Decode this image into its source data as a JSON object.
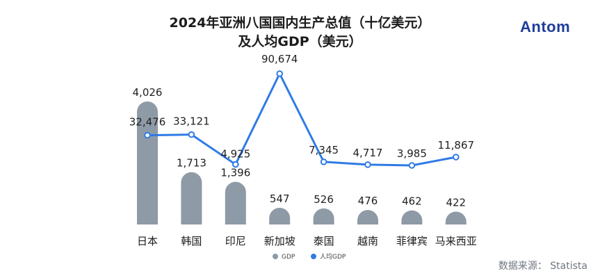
{
  "title_line1": "2024年亚洲八国国内生产总值（十亿美元）",
  "title_line2": "及人均GDP（美元）",
  "logo": "Antom",
  "source": "数据来源： Statista",
  "colors": {
    "bar": "#8e9aa6",
    "line": "#2f7be5",
    "point_fill": "#ffffff"
  },
  "chart_data": {
    "type": "bar",
    "title": "2024年亚洲八国国内生产总值（十亿美元） 及人均GDP（美元）",
    "categories": [
      "日本",
      "韩国",
      "印尼",
      "新加坡",
      "泰国",
      "越南",
      "菲律宾",
      "马来西亚"
    ],
    "series": [
      {
        "name": "GDP",
        "type": "bar",
        "values": [
          4026,
          1713,
          1396,
          547,
          526,
          476,
          462,
          422
        ],
        "labels": [
          "4,026",
          "1,713",
          "1,396",
          "547",
          "526",
          "476",
          "462",
          "422"
        ]
      },
      {
        "name": "人均GDP",
        "type": "line",
        "values": [
          32476,
          33121,
          4925,
          90674,
          7345,
          4717,
          3985,
          11867
        ],
        "labels": [
          "32,476",
          "33,121",
          "4,925",
          "90,674",
          "7,345",
          "4,717",
          "3,985",
          "11,867"
        ]
      }
    ],
    "legend": {
      "position": "bottom",
      "items": [
        "GDP",
        "人均GDP"
      ]
    },
    "grid": false
  }
}
